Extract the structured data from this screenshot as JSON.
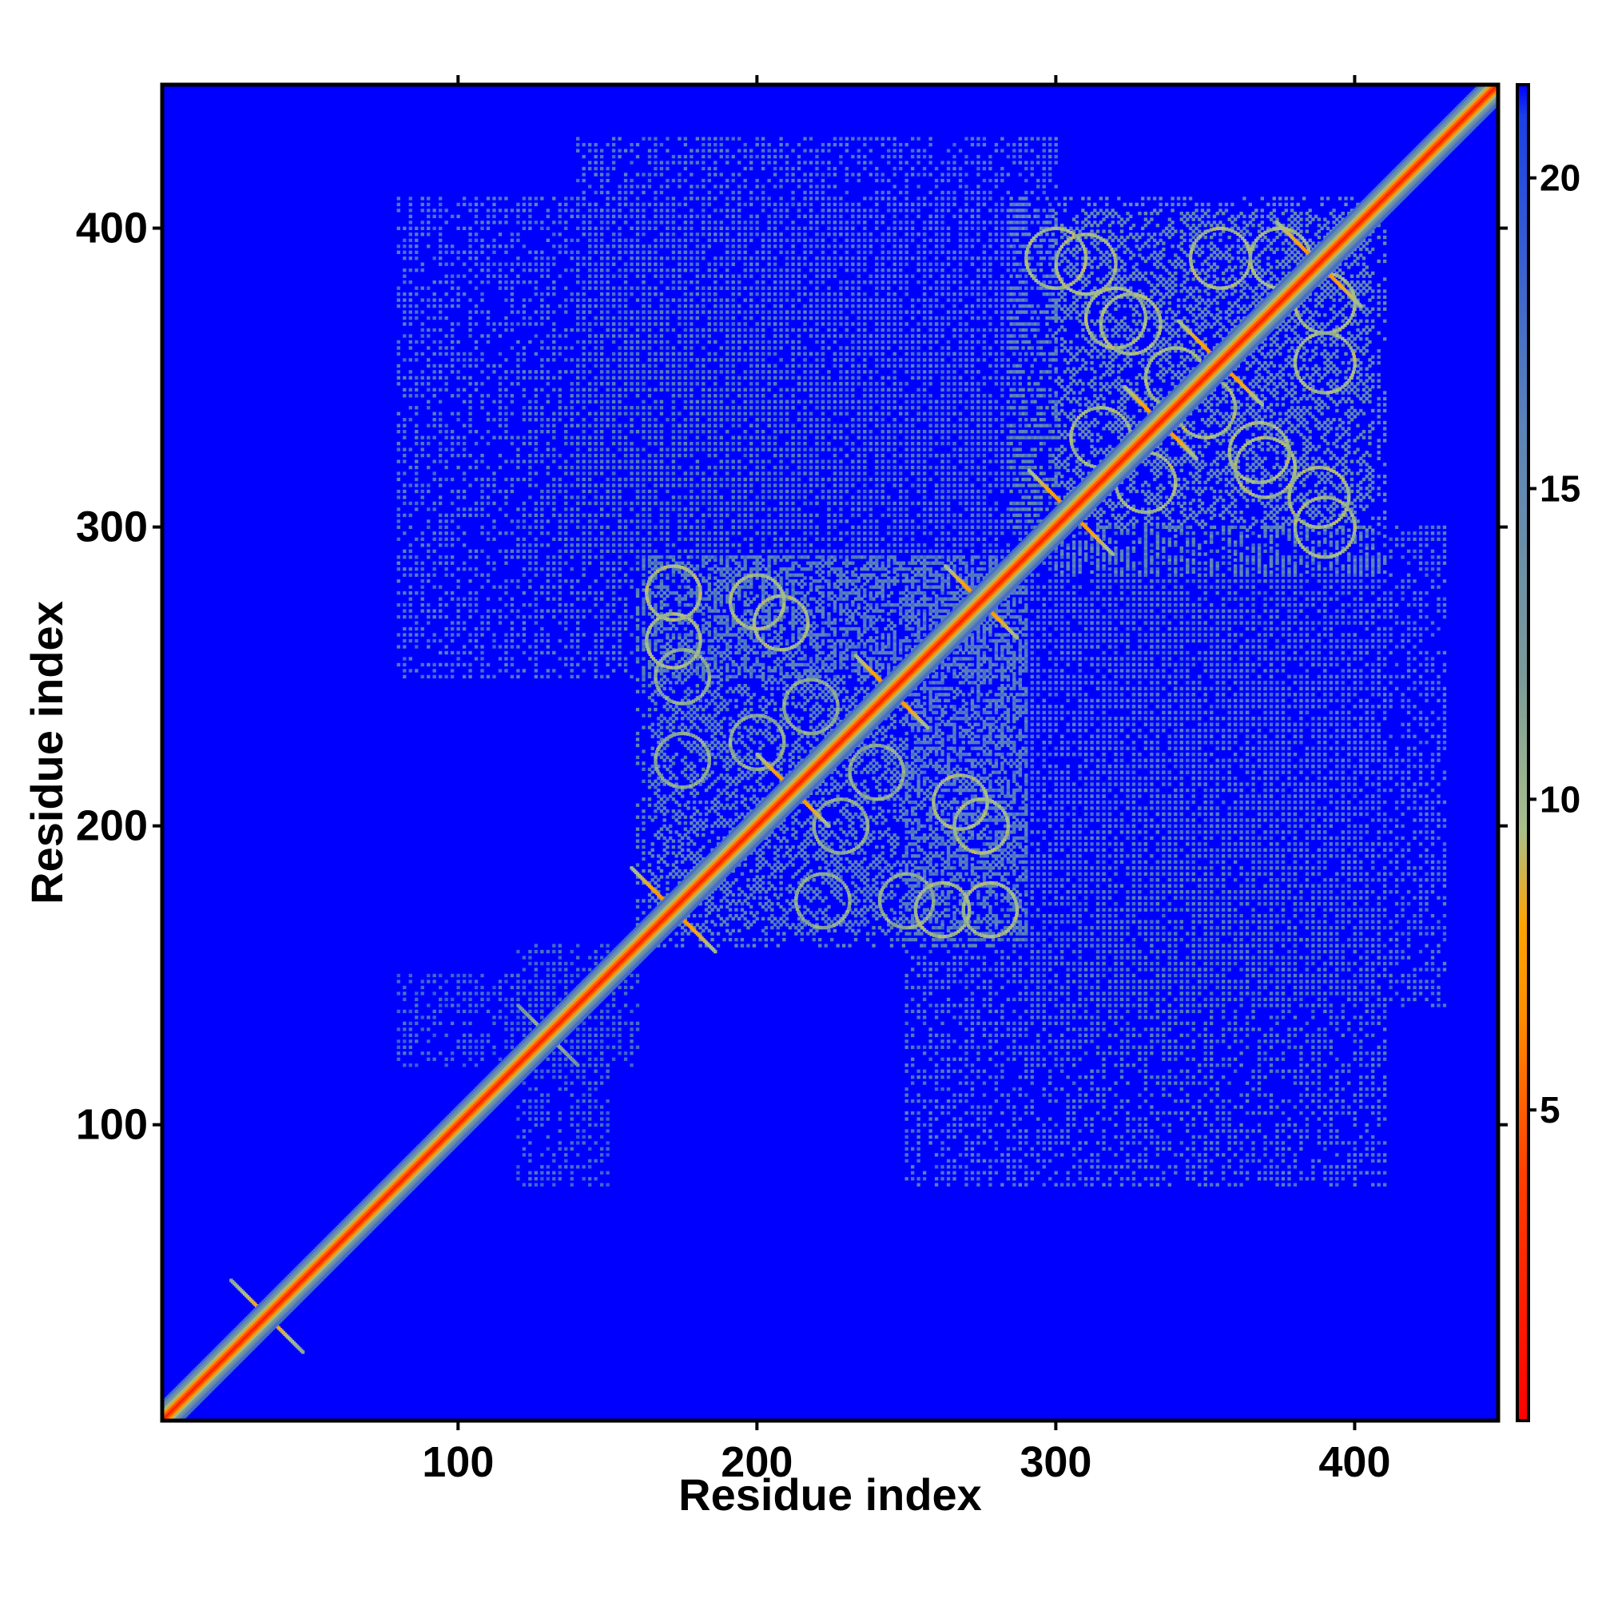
{
  "chart_data": {
    "type": "heatmap",
    "title": "",
    "xlabel": "Residue index",
    "ylabel": "Residue index",
    "xlim": [
      1,
      448
    ],
    "ylim": [
      1,
      448
    ],
    "x_ticks": [
      100,
      200,
      300,
      400
    ],
    "y_ticks": [
      100,
      200,
      300,
      400
    ],
    "x_tick_labels": [
      "100",
      "200",
      "300",
      "400"
    ],
    "y_tick_labels": [
      "100",
      "200",
      "300",
      "400"
    ],
    "grid": false,
    "colorbar": {
      "range": [
        0,
        21.5
      ],
      "ticks": [
        5,
        10,
        15,
        20
      ],
      "tick_labels": [
        "5",
        "10",
        "15",
        "20"
      ],
      "stops": [
        {
          "value": 0,
          "color": "#ff0000"
        },
        {
          "value": 4,
          "color": "#ff4000"
        },
        {
          "value": 6.5,
          "color": "#ff8c00"
        },
        {
          "value": 8,
          "color": "#ffa500"
        },
        {
          "value": 9.5,
          "color": "#a9c08a"
        },
        {
          "value": 12,
          "color": "#7a9a9a"
        },
        {
          "value": 16,
          "color": "#5b84b8"
        },
        {
          "value": 21,
          "color": "#1a40e8"
        },
        {
          "value": 21.5,
          "color": "#0000ff"
        }
      ]
    },
    "background_value": 21.5,
    "background_color": "#0000ff",
    "diagonal": {
      "from": 1,
      "to": 448,
      "value": 2
    },
    "clusters": [
      {
        "x": [
          300,
          410
        ],
        "y": [
          285,
          405
        ],
        "value": 15
      },
      {
        "x": [
          160,
          290
        ],
        "y": [
          165,
          290
        ],
        "value": 16
      },
      {
        "x": [
          250,
          410
        ],
        "y": [
          80,
          290
        ],
        "value": 17
      },
      {
        "x": [
          140,
          300
        ],
        "y": [
          290,
          430
        ],
        "value": 17
      },
      {
        "x": [
          80,
          160
        ],
        "y": [
          120,
          150
        ],
        "value": 18
      }
    ],
    "crossings": [
      {
        "center": [
          36,
          36
        ],
        "halfwidth": 12,
        "value": 7
      },
      {
        "center": [
          130,
          130
        ],
        "halfwidth": 10,
        "value": 9
      },
      {
        "center": [
          172,
          172
        ],
        "halfwidth": 14,
        "value": 6
      },
      {
        "center": [
          212,
          212
        ],
        "halfwidth": 12,
        "value": 6
      },
      {
        "center": [
          245,
          245
        ],
        "halfwidth": 12,
        "value": 6
      },
      {
        "center": [
          275,
          275
        ],
        "halfwidth": 12,
        "value": 6
      },
      {
        "center": [
          305,
          305
        ],
        "halfwidth": 14,
        "value": 6
      },
      {
        "center": [
          335,
          335
        ],
        "halfwidth": 12,
        "value": 6
      },
      {
        "center": [
          355,
          355
        ],
        "halfwidth": 14,
        "value": 6
      },
      {
        "center": [
          388,
          388
        ],
        "halfwidth": 14,
        "value": 6
      }
    ],
    "off_diagonal_rings": [
      {
        "center": [
          172,
          278
        ],
        "radius": 9,
        "value": 9
      },
      {
        "center": [
          208,
          268
        ],
        "radius": 9,
        "value": 9
      },
      {
        "center": [
          175,
          250
        ],
        "radius": 9,
        "value": 10
      },
      {
        "center": [
          175,
          222
        ],
        "radius": 9,
        "value": 10
      },
      {
        "center": [
          218,
          240
        ],
        "radius": 9,
        "value": 10
      },
      {
        "center": [
          228,
          200
        ],
        "radius": 9,
        "value": 10
      },
      {
        "center": [
          262,
          172
        ],
        "radius": 9,
        "value": 9
      },
      {
        "center": [
          275,
          200
        ],
        "radius": 9,
        "value": 9
      },
      {
        "center": [
          310,
          388
        ],
        "radius": 10,
        "value": 9
      },
      {
        "center": [
          325,
          368
        ],
        "radius": 10,
        "value": 9
      },
      {
        "center": [
          375,
          390
        ],
        "radius": 10,
        "value": 9
      },
      {
        "center": [
          370,
          320
        ],
        "radius": 10,
        "value": 9
      },
      {
        "center": [
          390,
          300
        ],
        "radius": 10,
        "value": 9
      },
      {
        "center": [
          340,
          350
        ],
        "radius": 10,
        "value": 9
      },
      {
        "center": [
          315,
          330
        ],
        "radius": 10,
        "value": 9
      },
      {
        "center": [
          390,
          355
        ],
        "radius": 10,
        "value": 9
      }
    ]
  }
}
